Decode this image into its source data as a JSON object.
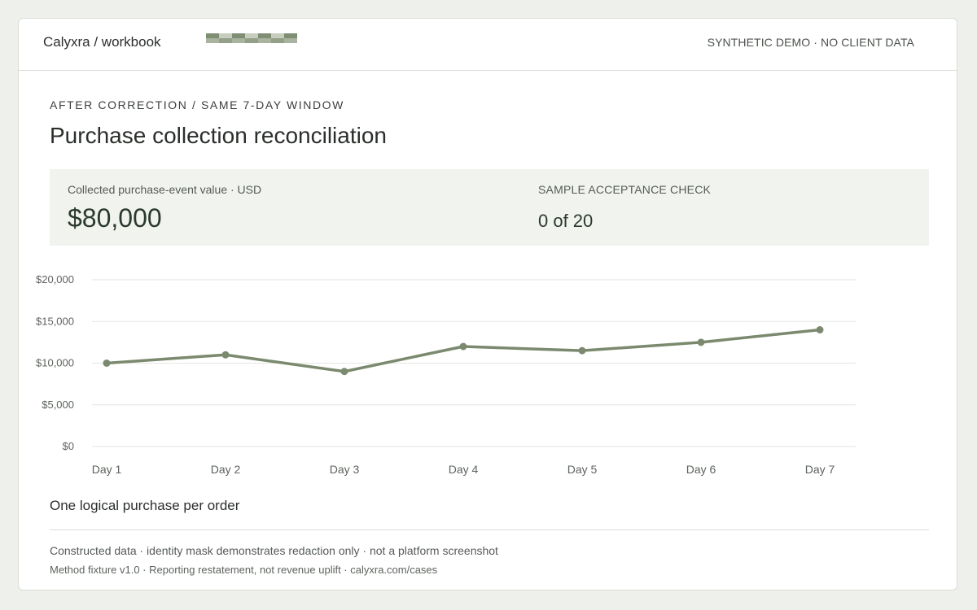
{
  "header": {
    "brand": "Calyxra / workbook",
    "demo_label": "SYNTHETIC DEMO · NO CLIENT DATA",
    "mask_colors": [
      "#7f8d73",
      "#a9b39f",
      "#c7cec0",
      "#93a087"
    ]
  },
  "page": {
    "eyebrow": "AFTER CORRECTION / SAME 7-DAY WINDOW",
    "title": "Purchase collection reconciliation"
  },
  "metrics": {
    "collected_label": "Collected purchase-event value · USD",
    "collected_value": "$80,000",
    "acceptance_label": "SAMPLE ACCEPTANCE CHECK",
    "acceptance_value": "0 of 20"
  },
  "chart_data": {
    "type": "line",
    "categories": [
      "Day 1",
      "Day 2",
      "Day 3",
      "Day 4",
      "Day 5",
      "Day 6",
      "Day 7"
    ],
    "series": [
      {
        "values": [
          10000,
          11000,
          9000,
          12000,
          11500,
          12500,
          14000
        ],
        "color": "#7b8a6f"
      }
    ],
    "ylim": [
      0,
      20000
    ],
    "yticks": [
      0,
      5000,
      10000,
      15000,
      20000
    ],
    "ytick_labels": [
      "$0",
      "$5,000",
      "$10,000",
      "$15,000",
      "$20,000"
    ],
    "grid": true,
    "title": "",
    "xlabel": "",
    "ylabel": ""
  },
  "caption": "One logical purchase per order",
  "footer": {
    "line1": "Constructed data · identity mask demonstrates redaction only · not a platform screenshot",
    "line2": "Method fixture v1.0 · Reporting restatement, not revenue uplift · calyxra.com/cases"
  }
}
